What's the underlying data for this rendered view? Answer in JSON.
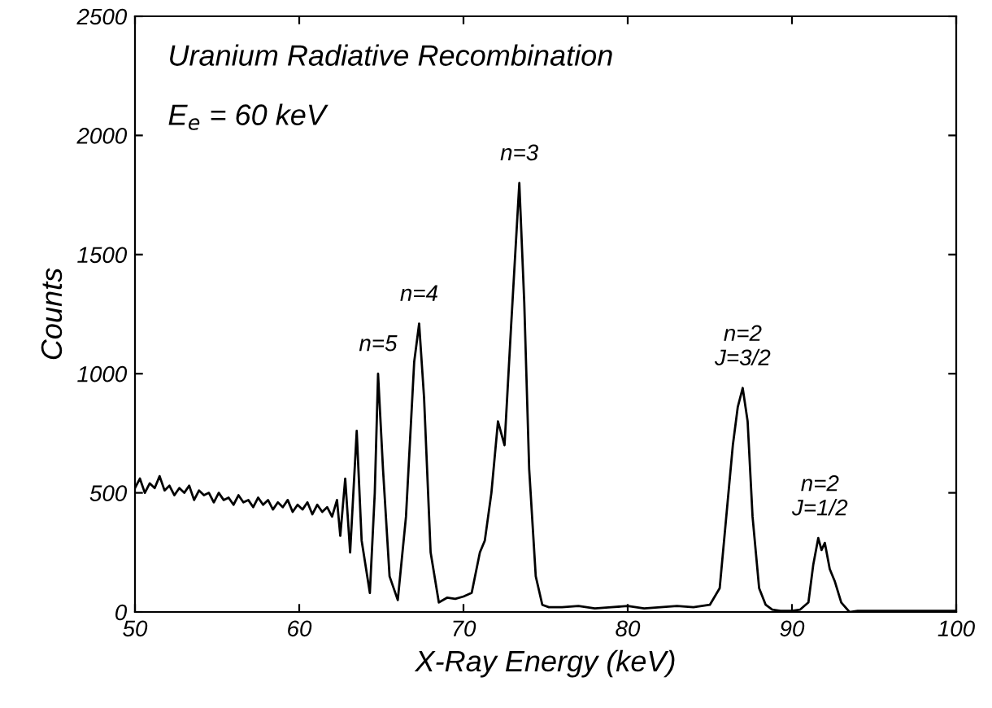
{
  "chart_data": {
    "type": "line",
    "xlabel": "X-Ray Energy (keV)",
    "ylabel": "Counts",
    "xlim": [
      50,
      100
    ],
    "ylim": [
      0,
      2500
    ],
    "xticks": [
      50,
      60,
      70,
      80,
      90,
      100
    ],
    "yticks": [
      0,
      500,
      1000,
      1500,
      2000,
      2500
    ],
    "grid": false,
    "legend": false,
    "marker": "none",
    "line_style": "solid",
    "annotations": [
      "Uranium Radiative Recombination",
      "E$_{e}$ = 60 keV",
      {
        "text": "n=5",
        "x": 64.8,
        "y": 1000
      },
      {
        "text": "n=4",
        "x": 67.3,
        "y": 1210
      },
      {
        "text": "n=3",
        "x": 73.4,
        "y": 1800
      },
      {
        "text": "n=2\nJ=3/2",
        "x": 87.0,
        "y": 940
      },
      {
        "text": "n=2\nJ=1/2",
        "x": 91.7,
        "y": 310
      }
    ],
    "series": [
      {
        "color": "#000000",
        "x": [
          50,
          50.3,
          50.6,
          50.9,
          51.2,
          51.5,
          51.8,
          52.1,
          52.4,
          52.7,
          53,
          53.3,
          53.6,
          53.9,
          54.2,
          54.5,
          54.8,
          55.1,
          55.4,
          55.7,
          56,
          56.3,
          56.6,
          56.9,
          57.2,
          57.5,
          57.8,
          58.1,
          58.4,
          58.7,
          59,
          59.3,
          59.6,
          59.9,
          60.2,
          60.5,
          60.8,
          61.1,
          61.4,
          61.7,
          62,
          62.3,
          62.5,
          62.8,
          63.1,
          63.5,
          63.8,
          64.3,
          64.6,
          64.8,
          65.1,
          65.5,
          66,
          66.5,
          67,
          67.3,
          67.6,
          68,
          68.5,
          69,
          69.5,
          70,
          70.5,
          71,
          71.3,
          71.7,
          72.1,
          72.5,
          72.9,
          73.4,
          73.7,
          74,
          74.4,
          74.8,
          75.2,
          76,
          77,
          78,
          79,
          80,
          81,
          82,
          83,
          84,
          85,
          85.6,
          86,
          86.4,
          86.7,
          87,
          87.3,
          87.6,
          88,
          88.4,
          88.8,
          89.3,
          90,
          90.5,
          91,
          91.3,
          91.6,
          91.8,
          92,
          92.3,
          92.6,
          93,
          93.5,
          94,
          95,
          96,
          97,
          98,
          99,
          100
        ],
        "values": [
          520,
          560,
          500,
          540,
          520,
          570,
          510,
          530,
          490,
          520,
          500,
          530,
          470,
          510,
          490,
          500,
          460,
          500,
          470,
          480,
          450,
          490,
          460,
          470,
          440,
          480,
          450,
          470,
          430,
          460,
          440,
          470,
          420,
          450,
          430,
          460,
          410,
          450,
          420,
          440,
          400,
          470,
          320,
          560,
          250,
          760,
          300,
          80,
          500,
          1000,
          600,
          150,
          50,
          400,
          1050,
          1210,
          900,
          250,
          40,
          60,
          55,
          65,
          80,
          250,
          300,
          500,
          800,
          700,
          1200,
          1800,
          1300,
          600,
          150,
          30,
          20,
          20,
          25,
          15,
          20,
          25,
          15,
          20,
          25,
          20,
          30,
          100,
          400,
          700,
          860,
          940,
          800,
          400,
          100,
          30,
          10,
          5,
          5,
          10,
          40,
          200,
          310,
          260,
          290,
          180,
          130,
          40,
          0,
          5,
          5,
          5,
          5,
          5,
          5,
          5
        ]
      }
    ]
  }
}
